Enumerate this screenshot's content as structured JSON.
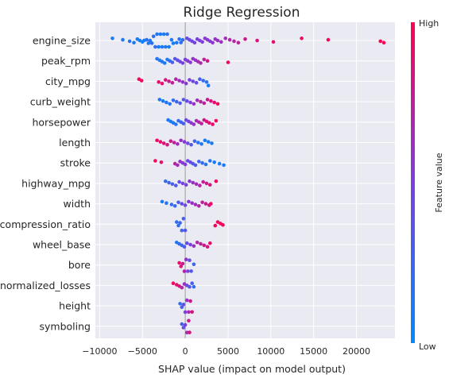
{
  "chart_data": {
    "type": "scatter",
    "subtype": "shap-beeswarm",
    "title": "Ridge Regression",
    "xlabel": "SHAP value (impact on model output)",
    "xlim": [
      -10500,
      24500
    ],
    "xticks": [
      -10000,
      -5000,
      0,
      5000,
      10000,
      15000,
      20000
    ],
    "grid": true,
    "colorbar": {
      "title": "Feature value",
      "high_label": "High",
      "low_label": "Low",
      "low_color": "#008bfb",
      "high_color": "#ff0052"
    },
    "features": [
      {
        "name": "engine_size",
        "points": [
          [
            -8500,
            0.1
          ],
          [
            -7300,
            0.1
          ],
          [
            -6500,
            0.15
          ],
          [
            -6000,
            0.12
          ],
          [
            -5600,
            0.1
          ],
          [
            -5300,
            0.08
          ],
          [
            -5000,
            0.05
          ],
          [
            -4800,
            0.1
          ],
          [
            -4500,
            0.15
          ],
          [
            -4300,
            0.15
          ],
          [
            -4100,
            0.15
          ],
          [
            -3900,
            0.18
          ],
          [
            -3700,
            0.2
          ],
          [
            -3500,
            0.2
          ],
          [
            -3300,
            0.15
          ],
          [
            -3100,
            0.12
          ],
          [
            -2900,
            0.12
          ],
          [
            -2700,
            0.1
          ],
          [
            -2500,
            0.1
          ],
          [
            -2300,
            0.12
          ],
          [
            -2100,
            0.15
          ],
          [
            -1900,
            0.1
          ],
          [
            -1600,
            0.12
          ],
          [
            -1400,
            0.1
          ],
          [
            -1000,
            0.1
          ],
          [
            -700,
            0.15
          ],
          [
            -500,
            0.2
          ],
          [
            -300,
            0.2
          ],
          [
            200,
            0.4
          ],
          [
            500,
            0.45
          ],
          [
            800,
            0.45
          ],
          [
            1100,
            0.48
          ],
          [
            1400,
            0.5
          ],
          [
            1700,
            0.5
          ],
          [
            2000,
            0.52
          ],
          [
            2300,
            0.55
          ],
          [
            2600,
            0.55
          ],
          [
            2900,
            0.55
          ],
          [
            3200,
            0.58
          ],
          [
            3500,
            0.6
          ],
          [
            3800,
            0.6
          ],
          [
            4200,
            0.62
          ],
          [
            4700,
            0.65
          ],
          [
            5200,
            0.7
          ],
          [
            5700,
            0.72
          ],
          [
            6200,
            0.75
          ],
          [
            7000,
            0.8
          ],
          [
            8400,
            0.85
          ],
          [
            10300,
            0.88
          ],
          [
            13600,
            0.92
          ],
          [
            16700,
            0.95
          ],
          [
            22800,
            1.0
          ],
          [
            23200,
            1.0
          ]
        ]
      },
      {
        "name": "peak_rpm",
        "points": [
          [
            -3300,
            0.15
          ],
          [
            -3000,
            0.12
          ],
          [
            -2700,
            0.15
          ],
          [
            -2400,
            0.1
          ],
          [
            -2100,
            0.12
          ],
          [
            -1800,
            0.2
          ],
          [
            -1500,
            0.3
          ],
          [
            -1200,
            0.35
          ],
          [
            -900,
            0.4
          ],
          [
            -600,
            0.45
          ],
          [
            -300,
            0.5
          ],
          [
            0,
            0.5
          ],
          [
            300,
            0.55
          ],
          [
            600,
            0.55
          ],
          [
            900,
            0.6
          ],
          [
            1200,
            0.6
          ],
          [
            1500,
            0.65
          ],
          [
            1800,
            0.7
          ],
          [
            2200,
            0.75
          ],
          [
            2600,
            0.8
          ],
          [
            5000,
            0.95
          ]
        ]
      },
      {
        "name": "city_mpg",
        "points": [
          [
            -5400,
            0.95
          ],
          [
            -5100,
            0.95
          ],
          [
            -3100,
            0.9
          ],
          [
            -2700,
            0.9
          ],
          [
            -2300,
            0.85
          ],
          [
            -1900,
            0.8
          ],
          [
            -1500,
            0.75
          ],
          [
            -1100,
            0.7
          ],
          [
            -700,
            0.65
          ],
          [
            -300,
            0.6
          ],
          [
            100,
            0.55
          ],
          [
            500,
            0.5
          ],
          [
            900,
            0.45
          ],
          [
            1300,
            0.4
          ],
          [
            1700,
            0.3
          ],
          [
            2100,
            0.2
          ],
          [
            2500,
            0.15
          ],
          [
            2700,
            0.1
          ]
        ]
      },
      {
        "name": "curb_weight",
        "points": [
          [
            -3000,
            0.1
          ],
          [
            -2600,
            0.1
          ],
          [
            -2200,
            0.15
          ],
          [
            -1800,
            0.15
          ],
          [
            -1400,
            0.2
          ],
          [
            -1000,
            0.25
          ],
          [
            -600,
            0.3
          ],
          [
            -200,
            0.35
          ],
          [
            200,
            0.4
          ],
          [
            600,
            0.5
          ],
          [
            1000,
            0.6
          ],
          [
            1400,
            0.65
          ],
          [
            1800,
            0.7
          ],
          [
            2200,
            0.75
          ],
          [
            2600,
            0.8
          ],
          [
            3000,
            0.85
          ],
          [
            3400,
            0.9
          ],
          [
            3800,
            0.95
          ]
        ]
      },
      {
        "name": "horsepower",
        "points": [
          [
            -2000,
            0.1
          ],
          [
            -1700,
            0.1
          ],
          [
            -1400,
            0.12
          ],
          [
            -1100,
            0.15
          ],
          [
            -800,
            0.2
          ],
          [
            -500,
            0.25
          ],
          [
            -200,
            0.3
          ],
          [
            100,
            0.4
          ],
          [
            400,
            0.5
          ],
          [
            700,
            0.55
          ],
          [
            1000,
            0.6
          ],
          [
            1300,
            0.65
          ],
          [
            1600,
            0.7
          ],
          [
            1900,
            0.75
          ],
          [
            2200,
            0.8
          ],
          [
            2500,
            0.85
          ],
          [
            2800,
            0.9
          ],
          [
            3200,
            0.92
          ],
          [
            3600,
            0.95
          ]
        ]
      },
      {
        "name": "length",
        "points": [
          [
            -3300,
            0.95
          ],
          [
            -2900,
            0.9
          ],
          [
            -2500,
            0.88
          ],
          [
            -2100,
            0.85
          ],
          [
            -1700,
            0.8
          ],
          [
            -1300,
            0.75
          ],
          [
            -900,
            0.65
          ],
          [
            -500,
            0.6
          ],
          [
            -100,
            0.55
          ],
          [
            300,
            0.45
          ],
          [
            700,
            0.35
          ],
          [
            1100,
            0.25
          ],
          [
            1500,
            0.15
          ],
          [
            1900,
            0.15
          ],
          [
            2300,
            0.1
          ],
          [
            2700,
            0.1
          ],
          [
            3100,
            0.1
          ]
        ]
      },
      {
        "name": "stroke",
        "points": [
          [
            -3500,
            0.95
          ],
          [
            -2800,
            0.9
          ],
          [
            -1200,
            0.7
          ],
          [
            -900,
            0.65
          ],
          [
            -600,
            0.6
          ],
          [
            -300,
            0.55
          ],
          [
            0,
            0.5
          ],
          [
            300,
            0.45
          ],
          [
            600,
            0.4
          ],
          [
            900,
            0.35
          ],
          [
            1200,
            0.3
          ],
          [
            1600,
            0.25
          ],
          [
            2000,
            0.2
          ],
          [
            2400,
            0.15
          ],
          [
            2900,
            0.12
          ],
          [
            3400,
            0.1
          ],
          [
            4000,
            0.1
          ],
          [
            4500,
            0.1
          ]
        ]
      },
      {
        "name": "highway_mpg",
        "points": [
          [
            -2300,
            0.2
          ],
          [
            -1900,
            0.25
          ],
          [
            -1500,
            0.3
          ],
          [
            -1100,
            0.35
          ],
          [
            -700,
            0.4
          ],
          [
            -300,
            0.45
          ],
          [
            100,
            0.5
          ],
          [
            500,
            0.55
          ],
          [
            900,
            0.6
          ],
          [
            1300,
            0.65
          ],
          [
            1700,
            0.7
          ],
          [
            2100,
            0.75
          ],
          [
            2500,
            0.8
          ],
          [
            2900,
            0.85
          ],
          [
            3600,
            0.95
          ]
        ]
      },
      {
        "name": "width",
        "points": [
          [
            -2700,
            0.1
          ],
          [
            -2200,
            0.15
          ],
          [
            -1600,
            0.2
          ],
          [
            -1200,
            0.25
          ],
          [
            -800,
            0.3
          ],
          [
            -400,
            0.4
          ],
          [
            0,
            0.45
          ],
          [
            400,
            0.55
          ],
          [
            800,
            0.6
          ],
          [
            1200,
            0.65
          ],
          [
            1600,
            0.7
          ],
          [
            2000,
            0.75
          ],
          [
            2400,
            0.8
          ],
          [
            2800,
            0.85
          ],
          [
            3000,
            0.9
          ]
        ]
      },
      {
        "name": "compression_ratio",
        "points": [
          [
            -1000,
            0.2
          ],
          [
            -800,
            0.2
          ],
          [
            -600,
            0.25
          ],
          [
            -400,
            0.25
          ],
          [
            -200,
            0.3
          ],
          [
            0,
            0.35
          ],
          [
            3500,
            0.95
          ],
          [
            3800,
            0.95
          ],
          [
            4100,
            0.95
          ],
          [
            4400,
            0.95
          ]
        ]
      },
      {
        "name": "wheel_base",
        "points": [
          [
            -1000,
            0.15
          ],
          [
            -700,
            0.2
          ],
          [
            -400,
            0.25
          ],
          [
            -100,
            0.3
          ],
          [
            200,
            0.4
          ],
          [
            600,
            0.5
          ],
          [
            1000,
            0.6
          ],
          [
            1400,
            0.7
          ],
          [
            1800,
            0.75
          ],
          [
            2200,
            0.8
          ],
          [
            2600,
            0.85
          ],
          [
            2900,
            0.9
          ]
        ]
      },
      {
        "name": "bore",
        "points": [
          [
            -700,
            0.9
          ],
          [
            -500,
            0.85
          ],
          [
            -300,
            0.8
          ],
          [
            -100,
            0.7
          ],
          [
            100,
            0.6
          ],
          [
            300,
            0.5
          ],
          [
            500,
            0.4
          ],
          [
            700,
            0.35
          ],
          [
            1000,
            0.25
          ]
        ]
      },
      {
        "name": "normalized_losses",
        "points": [
          [
            -1400,
            0.95
          ],
          [
            -1000,
            0.9
          ],
          [
            -700,
            0.85
          ],
          [
            -400,
            0.7
          ],
          [
            -100,
            0.6
          ],
          [
            200,
            0.45
          ],
          [
            500,
            0.35
          ],
          [
            800,
            0.3
          ],
          [
            1000,
            0.2
          ]
        ]
      },
      {
        "name": "height",
        "points": [
          [
            -600,
            0.2
          ],
          [
            -400,
            0.3
          ],
          [
            -200,
            0.4
          ],
          [
            0,
            0.5
          ],
          [
            200,
            0.6
          ],
          [
            400,
            0.7
          ],
          [
            600,
            0.8
          ],
          [
            800,
            0.85
          ]
        ]
      },
      {
        "name": "symboling",
        "points": [
          [
            -400,
            0.3
          ],
          [
            -200,
            0.4
          ],
          [
            0,
            0.5
          ],
          [
            200,
            0.65
          ],
          [
            400,
            0.8
          ],
          [
            500,
            0.85
          ]
        ]
      }
    ]
  }
}
